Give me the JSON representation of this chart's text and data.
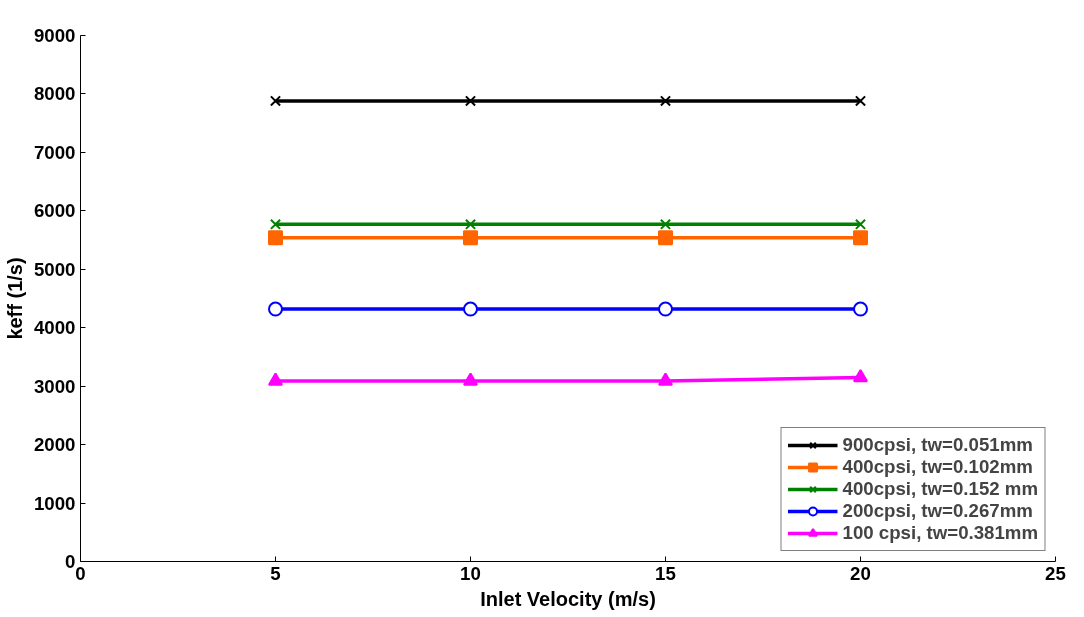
{
  "chart_data": {
    "type": "line",
    "xlabel": "Inlet Velocity (m/s)",
    "ylabel": "keff (1/s)",
    "x": [
      5,
      10,
      15,
      20
    ],
    "series": [
      {
        "name": "900cpsi, tw=0.051mm",
        "color": "#000000",
        "marker": "cross",
        "values": [
          7880,
          7880,
          7880,
          7880
        ]
      },
      {
        "name": "400cpsi, tw=0.102mm",
        "color": "#ff6600",
        "marker": "square",
        "values": [
          5540,
          5540,
          5540,
          5540
        ]
      },
      {
        "name": "400cpsi, tw=0.152 mm",
        "color": "#008000",
        "marker": "cross",
        "values": [
          5770,
          5770,
          5770,
          5770
        ]
      },
      {
        "name": "200cpsi, tw=0.267mm",
        "color": "#0000ff",
        "marker": "circle",
        "values": [
          4320,
          4320,
          4320,
          4320
        ]
      },
      {
        "name": "100 cpsi, tw=0.381mm",
        "color": "#ff00ff",
        "marker": "triangle",
        "values": [
          3090,
          3090,
          3090,
          3150
        ]
      }
    ],
    "xlim": [
      0,
      25
    ],
    "xticks": [
      0,
      5,
      10,
      15,
      20,
      25
    ],
    "ylim": [
      0,
      9000
    ],
    "yticks": [
      0,
      1000,
      2000,
      3000,
      4000,
      5000,
      6000,
      7000,
      8000,
      9000
    ],
    "grid": false,
    "legend": "bottom right",
    "line_style": "solid"
  }
}
